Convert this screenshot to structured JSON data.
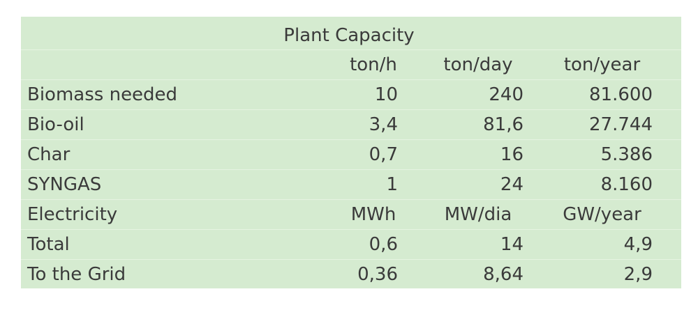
{
  "title": "Plant Capacity",
  "units_header": [
    "ton/h",
    "ton/day",
    "ton/year"
  ],
  "rows": [
    {
      "label": "Biomass needed",
      "values": [
        "10",
        "240",
        "81.600"
      ]
    },
    {
      "label": "Bio-oil",
      "values": [
        "3,4",
        "81,6",
        "27.744"
      ]
    },
    {
      "label": "Char",
      "values": [
        "0,7",
        "16",
        "5.386"
      ]
    },
    {
      "label": "SYNGAS",
      "values": [
        "1",
        "24",
        "8.160"
      ]
    }
  ],
  "electricity": {
    "label": "Electricity",
    "units": [
      "MWh",
      "MW/dia",
      "GW/year"
    ]
  },
  "electricity_rows": [
    {
      "label": "Total",
      "values": [
        "0,6",
        "14",
        "4,9"
      ]
    },
    {
      "label": "To the Grid",
      "values": [
        "0,36",
        "8,64",
        "2,9"
      ]
    }
  ],
  "colors": {
    "background": "#d5ebd0",
    "text": "#3a3a3a"
  }
}
